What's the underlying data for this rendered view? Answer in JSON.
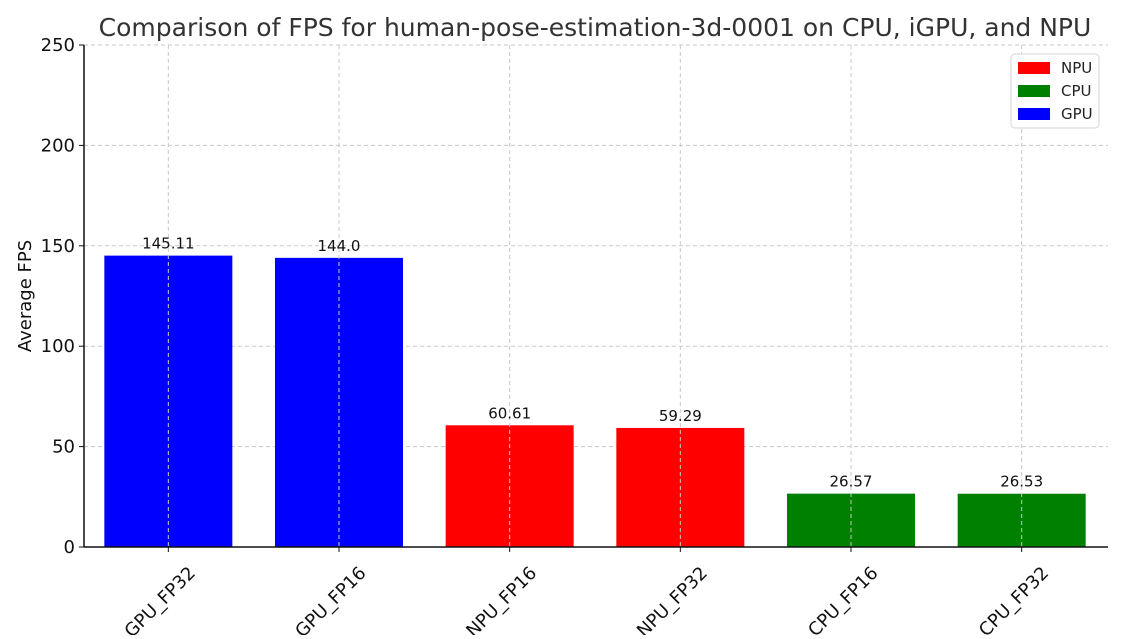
{
  "chart_data": {
    "type": "bar",
    "title": "Comparison of FPS for human-pose-estimation-3d-0001 on CPU, iGPU, and NPU",
    "xlabel": "",
    "ylabel": "Average FPS",
    "ylim": [
      0,
      250
    ],
    "yticks": [
      "0",
      "50",
      "100",
      "150",
      "200",
      "250"
    ],
    "categories": [
      "GPU_FP32",
      "GPU_FP16",
      "NPU_FP16",
      "NPU_FP32",
      "CPU_FP16",
      "CPU_FP32"
    ],
    "values": [
      145.11,
      144.0,
      60.61,
      59.29,
      26.57,
      26.53
    ],
    "value_labels": [
      "145.11",
      "144.0",
      "60.61",
      "59.29",
      "26.57",
      "26.53"
    ],
    "bar_groups": [
      "GPU",
      "GPU",
      "NPU",
      "NPU",
      "CPU",
      "CPU"
    ],
    "grid": true,
    "legend": {
      "placement": "top-right",
      "entries": [
        {
          "label": "NPU",
          "color": "#ff0000"
        },
        {
          "label": "CPU",
          "color": "#008000"
        },
        {
          "label": "GPU",
          "color": "#0000ff"
        }
      ]
    },
    "colors": {
      "GPU": "#0000ff",
      "NPU": "#ff0000",
      "CPU": "#008000"
    }
  }
}
